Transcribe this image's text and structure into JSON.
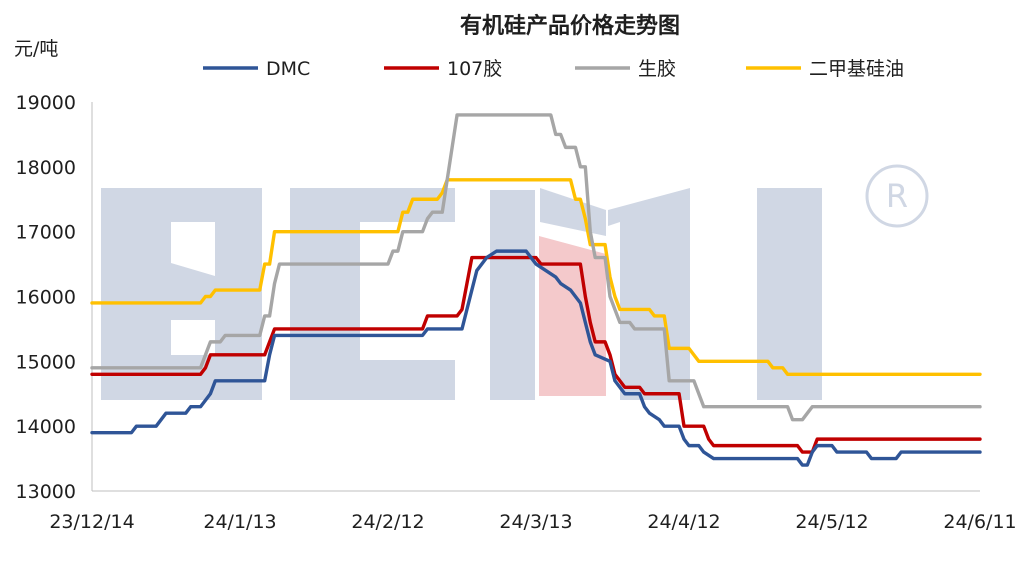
{
  "chart_data": {
    "type": "line",
    "title": "有机硅产品价格走势图",
    "ylabel": "元/吨",
    "ylim": [
      13000,
      19000
    ],
    "yticks": [
      13000,
      14000,
      15000,
      16000,
      17000,
      18000,
      19000
    ],
    "xlim": [
      "2023-12-14",
      "2024-06-11"
    ],
    "xticks": [
      "23/12/14",
      "24/1/13",
      "24/2/12",
      "24/3/13",
      "24/4/12",
      "24/5/12",
      "24/6/11"
    ],
    "grid": false,
    "legend": "top",
    "watermark": "BCMI ®",
    "series": [
      {
        "name": "DMC",
        "color": "#2f5597",
        "points": [
          [
            "2023-12-14",
            13900
          ],
          [
            "2023-12-22",
            13900
          ],
          [
            "2023-12-23",
            14000
          ],
          [
            "2023-12-27",
            14000
          ],
          [
            "2023-12-28",
            14100
          ],
          [
            "2023-12-29",
            14200
          ],
          [
            "2024-01-02",
            14200
          ],
          [
            "2024-01-03",
            14300
          ],
          [
            "2024-01-05",
            14300
          ],
          [
            "2024-01-06",
            14400
          ],
          [
            "2024-01-07",
            14500
          ],
          [
            "2024-01-08",
            14700
          ],
          [
            "2024-01-18",
            14700
          ],
          [
            "2024-01-19",
            15100
          ],
          [
            "2024-01-20",
            15400
          ],
          [
            "2024-02-19",
            15400
          ],
          [
            "2024-02-20",
            15500
          ],
          [
            "2024-02-27",
            15500
          ],
          [
            "2024-02-28",
            15800
          ],
          [
            "2024-03-01",
            16400
          ],
          [
            "2024-03-03",
            16600
          ],
          [
            "2024-03-05",
            16700
          ],
          [
            "2024-03-11",
            16700
          ],
          [
            "2024-03-13",
            16500
          ],
          [
            "2024-03-15",
            16400
          ],
          [
            "2024-03-17",
            16300
          ],
          [
            "2024-03-18",
            16200
          ],
          [
            "2024-03-20",
            16100
          ],
          [
            "2024-03-22",
            15900
          ],
          [
            "2024-03-23",
            15600
          ],
          [
            "2024-03-24",
            15300
          ],
          [
            "2024-03-25",
            15100
          ],
          [
            "2024-03-28",
            15000
          ],
          [
            "2024-03-29",
            14700
          ],
          [
            "2024-03-30",
            14600
          ],
          [
            "2024-03-31",
            14500
          ],
          [
            "2024-04-03",
            14500
          ],
          [
            "2024-04-04",
            14300
          ],
          [
            "2024-04-05",
            14200
          ],
          [
            "2024-04-07",
            14100
          ],
          [
            "2024-04-08",
            14000
          ],
          [
            "2024-04-11",
            14000
          ],
          [
            "2024-04-12",
            13800
          ],
          [
            "2024-04-13",
            13700
          ],
          [
            "2024-04-15",
            13700
          ],
          [
            "2024-04-16",
            13600
          ],
          [
            "2024-04-18",
            13500
          ],
          [
            "2024-05-05",
            13500
          ],
          [
            "2024-05-06",
            13400
          ],
          [
            "2024-05-07",
            13400
          ],
          [
            "2024-05-08",
            13600
          ],
          [
            "2024-05-09",
            13700
          ],
          [
            "2024-05-12",
            13700
          ],
          [
            "2024-05-13",
            13600
          ],
          [
            "2024-05-19",
            13600
          ],
          [
            "2024-05-20",
            13500
          ],
          [
            "2024-05-25",
            13500
          ],
          [
            "2024-05-26",
            13600
          ],
          [
            "2024-06-11",
            13600
          ]
        ]
      },
      {
        "name": "107胶",
        "color": "#c00000",
        "points": [
          [
            "2023-12-14",
            14800
          ],
          [
            "2024-01-05",
            14800
          ],
          [
            "2024-01-06",
            14900
          ],
          [
            "2024-01-07",
            15100
          ],
          [
            "2024-01-18",
            15100
          ],
          [
            "2024-01-19",
            15300
          ],
          [
            "2024-01-20",
            15500
          ],
          [
            "2024-02-19",
            15500
          ],
          [
            "2024-02-20",
            15700
          ],
          [
            "2024-02-26",
            15700
          ],
          [
            "2024-02-27",
            15800
          ],
          [
            "2024-02-28",
            16200
          ],
          [
            "2024-02-29",
            16600
          ],
          [
            "2024-03-13",
            16600
          ],
          [
            "2024-03-14",
            16500
          ],
          [
            "2024-03-22",
            16500
          ],
          [
            "2024-03-23",
            16000
          ],
          [
            "2024-03-24",
            15600
          ],
          [
            "2024-03-25",
            15300
          ],
          [
            "2024-03-27",
            15300
          ],
          [
            "2024-03-28",
            15100
          ],
          [
            "2024-03-29",
            14800
          ],
          [
            "2024-03-30",
            14700
          ],
          [
            "2024-03-31",
            14600
          ],
          [
            "2024-04-03",
            14600
          ],
          [
            "2024-04-04",
            14500
          ],
          [
            "2024-04-11",
            14500
          ],
          [
            "2024-04-12",
            14000
          ],
          [
            "2024-04-16",
            14000
          ],
          [
            "2024-04-17",
            13800
          ],
          [
            "2024-04-18",
            13700
          ],
          [
            "2024-05-05",
            13700
          ],
          [
            "2024-05-06",
            13600
          ],
          [
            "2024-05-08",
            13600
          ],
          [
            "2024-05-09",
            13800
          ],
          [
            "2024-06-11",
            13800
          ]
        ]
      },
      {
        "name": "生胶",
        "color": "#a6a6a6",
        "points": [
          [
            "2023-12-14",
            14900
          ],
          [
            "2024-01-05",
            14900
          ],
          [
            "2024-01-06",
            15100
          ],
          [
            "2024-01-07",
            15300
          ],
          [
            "2024-01-09",
            15300
          ],
          [
            "2024-01-10",
            15400
          ],
          [
            "2024-01-17",
            15400
          ],
          [
            "2024-01-18",
            15700
          ],
          [
            "2024-01-19",
            15700
          ],
          [
            "2024-01-20",
            16200
          ],
          [
            "2024-01-21",
            16500
          ],
          [
            "2024-02-12",
            16500
          ],
          [
            "2024-02-13",
            16700
          ],
          [
            "2024-02-14",
            16700
          ],
          [
            "2024-02-15",
            17000
          ],
          [
            "2024-02-19",
            17000
          ],
          [
            "2024-02-20",
            17200
          ],
          [
            "2024-02-21",
            17300
          ],
          [
            "2024-02-23",
            17300
          ],
          [
            "2024-02-24",
            17800
          ],
          [
            "2024-02-25",
            18300
          ],
          [
            "2024-02-26",
            18800
          ],
          [
            "2024-03-16",
            18800
          ],
          [
            "2024-03-17",
            18500
          ],
          [
            "2024-03-18",
            18500
          ],
          [
            "2024-03-19",
            18300
          ],
          [
            "2024-03-21",
            18300
          ],
          [
            "2024-03-22",
            18000
          ],
          [
            "2024-03-23",
            18000
          ],
          [
            "2024-03-24",
            17000
          ],
          [
            "2024-03-25",
            16600
          ],
          [
            "2024-03-27",
            16600
          ],
          [
            "2024-03-28",
            16000
          ],
          [
            "2024-03-29",
            15800
          ],
          [
            "2024-03-30",
            15600
          ],
          [
            "2024-04-01",
            15600
          ],
          [
            "2024-04-02",
            15500
          ],
          [
            "2024-04-08",
            15500
          ],
          [
            "2024-04-09",
            14700
          ],
          [
            "2024-04-14",
            14700
          ],
          [
            "2024-04-15",
            14500
          ],
          [
            "2024-04-16",
            14300
          ],
          [
            "2024-05-03",
            14300
          ],
          [
            "2024-05-04",
            14100
          ],
          [
            "2024-05-06",
            14100
          ],
          [
            "2024-05-07",
            14200
          ],
          [
            "2024-05-08",
            14300
          ],
          [
            "2024-06-11",
            14300
          ]
        ]
      },
      {
        "name": "二甲基硅油",
        "color": "#ffc000",
        "points": [
          [
            "2023-12-14",
            15900
          ],
          [
            "2024-01-05",
            15900
          ],
          [
            "2024-01-06",
            16000
          ],
          [
            "2024-01-07",
            16000
          ],
          [
            "2024-01-08",
            16100
          ],
          [
            "2024-01-17",
            16100
          ],
          [
            "2024-01-18",
            16500
          ],
          [
            "2024-01-19",
            16500
          ],
          [
            "2024-01-20",
            17000
          ],
          [
            "2024-02-14",
            17000
          ],
          [
            "2024-02-15",
            17300
          ],
          [
            "2024-02-16",
            17300
          ],
          [
            "2024-02-17",
            17500
          ],
          [
            "2024-02-22",
            17500
          ],
          [
            "2024-02-23",
            17600
          ],
          [
            "2024-02-24",
            17800
          ],
          [
            "2024-03-20",
            17800
          ],
          [
            "2024-03-21",
            17500
          ],
          [
            "2024-03-22",
            17500
          ],
          [
            "2024-03-23",
            17200
          ],
          [
            "2024-03-24",
            16800
          ],
          [
            "2024-03-27",
            16800
          ],
          [
            "2024-03-28",
            16300
          ],
          [
            "2024-03-29",
            16000
          ],
          [
            "2024-03-30",
            15800
          ],
          [
            "2024-04-05",
            15800
          ],
          [
            "2024-04-06",
            15700
          ],
          [
            "2024-04-08",
            15700
          ],
          [
            "2024-04-09",
            15200
          ],
          [
            "2024-04-13",
            15200
          ],
          [
            "2024-04-14",
            15100
          ],
          [
            "2024-04-15",
            15000
          ],
          [
            "2024-04-29",
            15000
          ],
          [
            "2024-04-30",
            14900
          ],
          [
            "2024-05-02",
            14900
          ],
          [
            "2024-05-03",
            14800
          ],
          [
            "2024-06-11",
            14800
          ]
        ]
      }
    ]
  }
}
